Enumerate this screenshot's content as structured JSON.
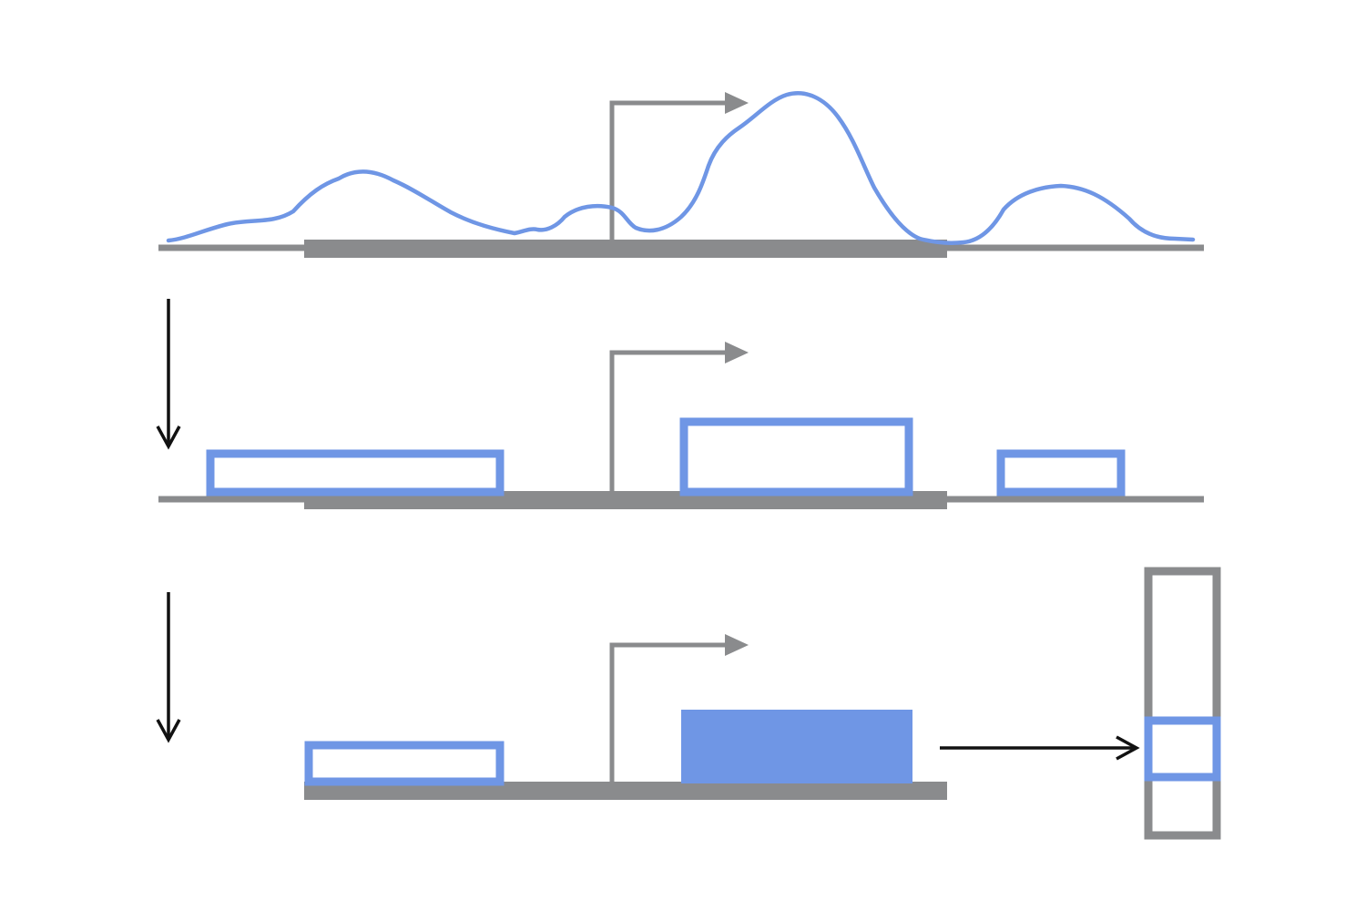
{
  "colors": {
    "signal": "#6f96e5",
    "genome": "#8a8b8d",
    "arrow": "#111111",
    "background": "#ffffff"
  },
  "diagram": {
    "rows": [
      {
        "name": "coverage-signal",
        "description_visible": false
      },
      {
        "name": "called-peaks"
      },
      {
        "name": "assigned-peak"
      }
    ],
    "vector": {
      "cells": 3,
      "active_cell": 2
    }
  }
}
